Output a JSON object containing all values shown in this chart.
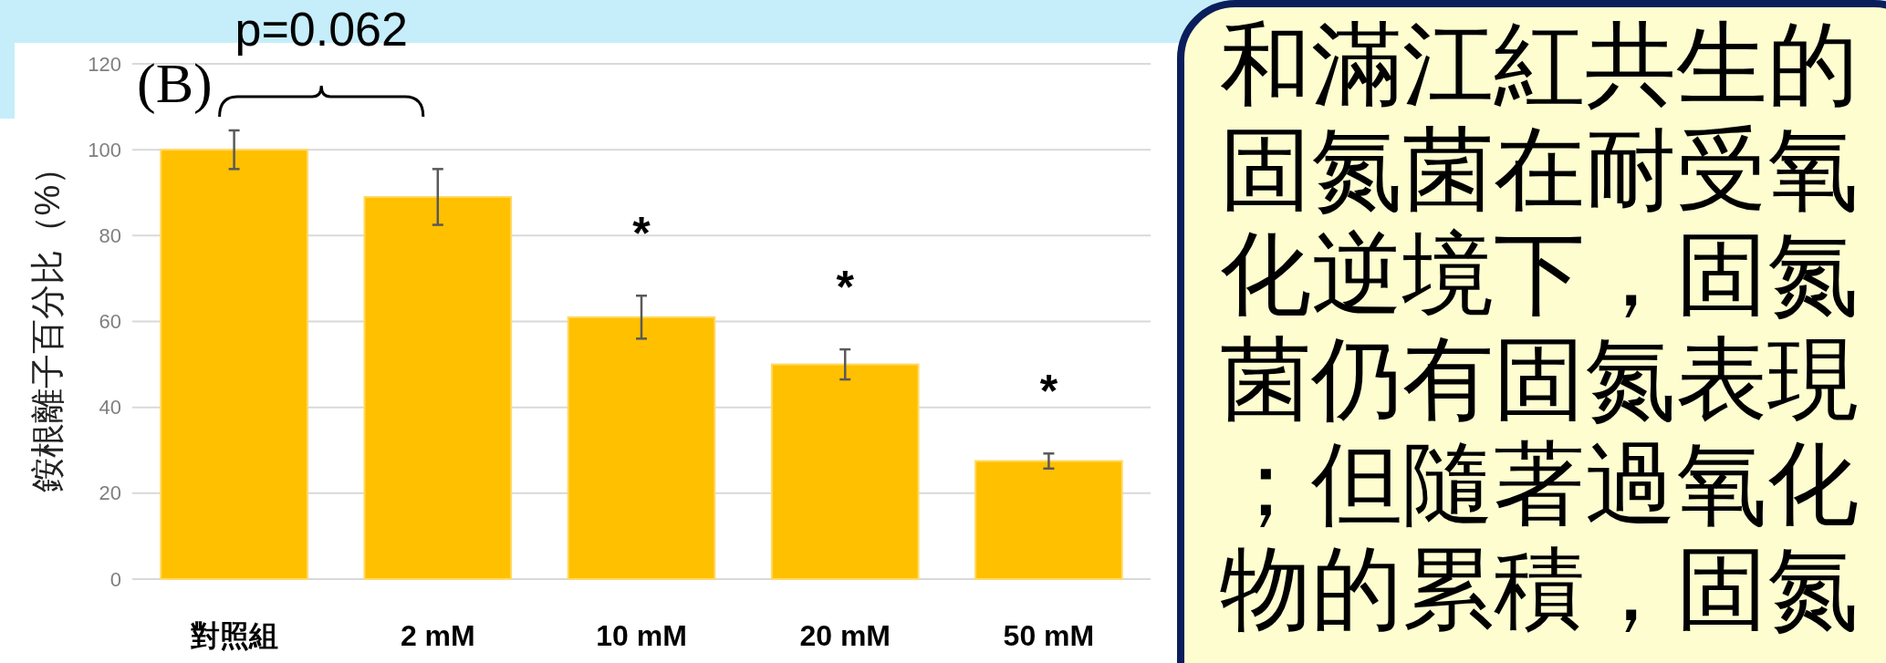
{
  "chart_data": {
    "type": "bar",
    "categories": [
      "對照組",
      "2 mM",
      "10 mM",
      "20 mM",
      "50 mM"
    ],
    "values": [
      100,
      89,
      61,
      50,
      27.5
    ],
    "errors": [
      4.5,
      6.5,
      5,
      3.5,
      1.75
    ],
    "color": "#ffc000",
    "ylabel": "銨根離子百分比（%）",
    "ylim": [
      0,
      120
    ],
    "yticks": [
      0,
      20,
      40,
      60,
      80,
      100,
      120
    ],
    "grid": "y",
    "annotations": [
      "(B)",
      "p=0.062",
      {
        "text": "*",
        "x": "10 mM",
        "y": 61
      },
      {
        "text": "*",
        "x": "20 mM",
        "y": 50
      },
      {
        "text": "*",
        "x": "50 mM",
        "y": 27.5
      },
      "和滿江紅共生的固氮菌在耐受氧化逆境下，固氮菌仍有固氮表現；但隨著過氧化物的累積，固氮"
    ]
  }
}
